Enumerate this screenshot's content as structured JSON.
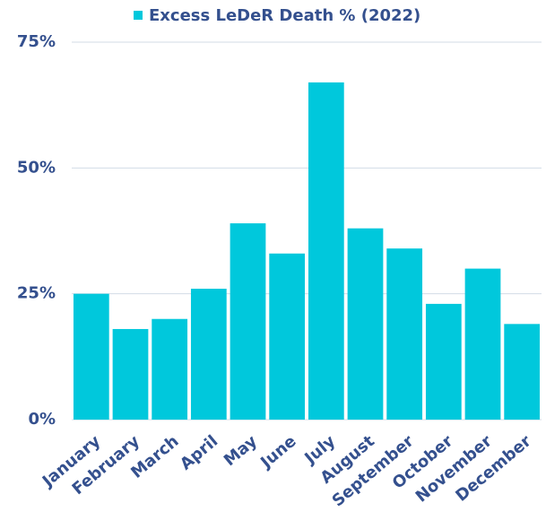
{
  "chart_data": {
    "type": "bar",
    "categories": [
      "January",
      "February",
      "March",
      "April",
      "May",
      "June",
      "July",
      "August",
      "September",
      "October",
      "November",
      "December"
    ],
    "series": [
      {
        "name": "Excess LeDeR Death % (2022)",
        "color": "#00c8dc",
        "values": [
          25,
          18,
          20,
          26,
          39,
          33,
          67,
          38,
          34,
          23,
          30,
          19
        ]
      }
    ],
    "ylim": [
      0,
      75
    ],
    "yticks": [
      {
        "value": 0,
        "label": "0%"
      },
      {
        "value": 25,
        "label": "25%"
      },
      {
        "value": 50,
        "label": "50%"
      },
      {
        "value": 75,
        "label": "75%"
      }
    ],
    "grid": true,
    "legend": "top"
  }
}
